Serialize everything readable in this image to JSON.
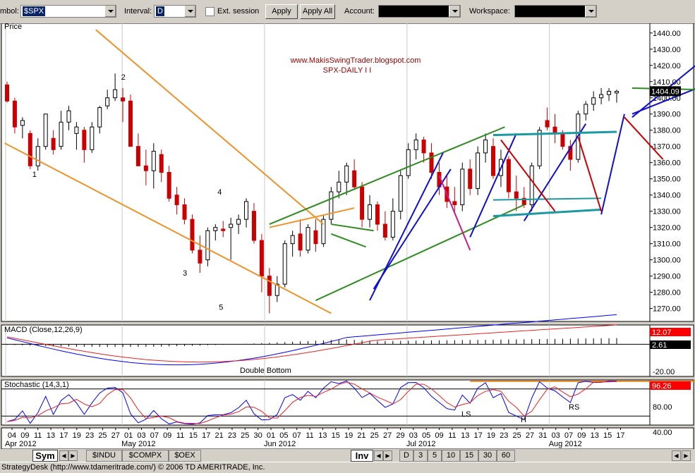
{
  "toolbar": {
    "symbol_label": "mbol:",
    "symbol_value": "$SPX",
    "interval_label": "Interval:",
    "interval_value": "D",
    "ext_session_label": "Ext. session",
    "apply_label": "Apply",
    "apply_all_label": "Apply All",
    "account_label": "Account:",
    "workspace_label": "Workspace:"
  },
  "price_panel": {
    "label": "Price",
    "watermark_url": "www.MakisSwingTrader.blogspot.com",
    "watermark_title": "SPX-DAILY I I",
    "last_price": "1404.09",
    "yticks": [
      "1440.00",
      "1430.00",
      "1420.00",
      "1410.00",
      "1400.00",
      "1390.00",
      "1380.00",
      "1370.00",
      "1360.00",
      "1350.00",
      "1340.00",
      "1330.00",
      "1320.00",
      "1310.00",
      "1300.00",
      "1290.00",
      "1280.00",
      "1270.00"
    ],
    "wave_labels": [
      "1",
      "2",
      "3",
      "4",
      "5"
    ],
    "ylim": [
      1262,
      1446
    ]
  },
  "macd_panel": {
    "label": "MACD (Close,12,26,9)",
    "value_top": "12.07",
    "value_mid": "2.61",
    "ytick": "-20.00",
    "annotation": "Double Bottom",
    "ylim": [
      -25,
      15
    ]
  },
  "stoch_panel": {
    "label": "Stochastic (14,3,1)",
    "value": "96.26",
    "ytick_80": "80.00",
    "ytick_40": "40.00",
    "labels": [
      "LS",
      "H",
      "RS"
    ],
    "ylim": [
      0,
      100
    ]
  },
  "x_axis": {
    "days": [
      "04",
      "09",
      "11",
      "13",
      "17",
      "19",
      "23",
      "25",
      "27",
      "01",
      "03",
      "07",
      "09",
      "11",
      "15",
      "17",
      "21",
      "23",
      "25",
      "30",
      "01",
      "05",
      "07",
      "11",
      "13",
      "15",
      "19",
      "21",
      "25",
      "27",
      "29",
      "03",
      "05",
      "09",
      "11",
      "13",
      "17",
      "19",
      "23",
      "25",
      "27",
      "31",
      "03",
      "07",
      "09",
      "13",
      "15",
      "17"
    ],
    "months": [
      {
        "label": "Apr 2012",
        "at": "04"
      },
      {
        "label": "May 2012",
        "at": "01"
      },
      {
        "label": "Jun 2012",
        "at": "01"
      },
      {
        "label": "Jul 2012",
        "at": "03"
      },
      {
        "label": "Aug 2012",
        "at": "03"
      }
    ]
  },
  "tabs": {
    "sym": "Sym",
    "sym_tabs": [
      "$INDU",
      "$COMPX",
      "$OEX"
    ],
    "inv": "Inv",
    "interval_tabs": [
      "D",
      "3",
      "5",
      "10",
      "15",
      "30",
      "60"
    ]
  },
  "status_bar": {
    "text": "StrategyDesk (http://www.tdameritrade.com/) © 2006 TD AMERITRADE, Inc."
  },
  "colors": {
    "up": "#000000",
    "down": "#cc0000",
    "orange": "#f0922a",
    "green": "#2e8b1e",
    "blue": "#1010cc",
    "teal": "#1a9aa0",
    "magenta": "#cc1a8a",
    "macd_line": "#0000ff",
    "macd_signal": "#ee2222",
    "stoch_k": "#0000ff",
    "stoch_d": "#ee2222"
  },
  "chart_data": {
    "type": "candlestick",
    "title": "SPX-DAILY I I",
    "series": [
      {
        "name": "$SPX",
        "candles": [
          [
            1408,
            1410,
            1397,
            1398
          ],
          [
            1398,
            1400,
            1378,
            1382
          ],
          [
            1383,
            1388,
            1375,
            1386
          ],
          [
            1378,
            1380,
            1356,
            1358
          ],
          [
            1358,
            1375,
            1355,
            1370
          ],
          [
            1370,
            1390,
            1368,
            1390
          ],
          [
            1375,
            1380,
            1365,
            1368
          ],
          [
            1370,
            1392,
            1368,
            1385
          ],
          [
            1385,
            1395,
            1380,
            1392
          ],
          [
            1378,
            1385,
            1368,
            1382
          ],
          [
            1380,
            1382,
            1360,
            1368
          ],
          [
            1368,
            1385,
            1366,
            1382
          ],
          [
            1382,
            1395,
            1378,
            1394
          ],
          [
            1395,
            1405,
            1393,
            1400
          ],
          [
            1400,
            1415,
            1398,
            1405
          ],
          [
            1400,
            1406,
            1385,
            1398
          ],
          [
            1398,
            1402,
            1370,
            1370
          ],
          [
            1370,
            1378,
            1358,
            1358
          ],
          [
            1358,
            1368,
            1346,
            1355
          ],
          [
            1355,
            1372,
            1344,
            1367
          ],
          [
            1365,
            1368,
            1348,
            1354
          ],
          [
            1354,
            1358,
            1336,
            1338
          ],
          [
            1340,
            1345,
            1328,
            1334
          ],
          [
            1334,
            1338,
            1322,
            1325
          ],
          [
            1325,
            1328,
            1304,
            1306
          ],
          [
            1306,
            1315,
            1292,
            1298
          ],
          [
            1300,
            1320,
            1296,
            1318
          ],
          [
            1318,
            1322,
            1312,
            1320
          ],
          [
            1319,
            1324,
            1314,
            1318
          ],
          [
            1320,
            1326,
            1300,
            1322
          ],
          [
            1322,
            1328,
            1316,
            1325
          ],
          [
            1325,
            1338,
            1320,
            1336
          ],
          [
            1330,
            1335,
            1310,
            1312
          ],
          [
            1312,
            1316,
            1280,
            1290
          ],
          [
            1290,
            1295,
            1267,
            1278
          ],
          [
            1278,
            1290,
            1274,
            1285
          ],
          [
            1285,
            1312,
            1283,
            1310
          ],
          [
            1310,
            1318,
            1302,
            1315
          ],
          [
            1316,
            1325,
            1302,
            1306
          ],
          [
            1306,
            1322,
            1304,
            1320
          ],
          [
            1318,
            1325,
            1305,
            1310
          ],
          [
            1310,
            1328,
            1308,
            1325
          ],
          [
            1325,
            1345,
            1322,
            1342
          ],
          [
            1342,
            1355,
            1338,
            1348
          ],
          [
            1348,
            1360,
            1340,
            1358
          ],
          [
            1355,
            1362,
            1344,
            1345
          ],
          [
            1345,
            1348,
            1320,
            1325
          ],
          [
            1325,
            1340,
            1320,
            1334
          ],
          [
            1334,
            1336,
            1318,
            1322
          ],
          [
            1322,
            1330,
            1312,
            1314
          ],
          [
            1314,
            1338,
            1312,
            1330
          ],
          [
            1330,
            1355,
            1325,
            1352
          ],
          [
            1352,
            1372,
            1350,
            1368
          ],
          [
            1368,
            1378,
            1362,
            1374
          ],
          [
            1374,
            1376,
            1360,
            1366
          ],
          [
            1366,
            1372,
            1350,
            1354
          ],
          [
            1354,
            1360,
            1340,
            1345
          ],
          [
            1345,
            1352,
            1332,
            1336
          ],
          [
            1336,
            1345,
            1328,
            1334
          ],
          [
            1334,
            1360,
            1330,
            1356
          ],
          [
            1356,
            1362,
            1340,
            1344
          ],
          [
            1344,
            1370,
            1340,
            1366
          ],
          [
            1366,
            1378,
            1360,
            1374
          ],
          [
            1370,
            1375,
            1350,
            1352
          ],
          [
            1352,
            1368,
            1345,
            1362
          ],
          [
            1362,
            1364,
            1338,
            1342
          ],
          [
            1342,
            1352,
            1330,
            1338
          ],
          [
            1338,
            1345,
            1332,
            1334
          ],
          [
            1334,
            1360,
            1330,
            1358
          ],
          [
            1358,
            1382,
            1356,
            1380
          ],
          [
            1386,
            1394,
            1380,
            1382
          ],
          [
            1382,
            1390,
            1372,
            1378
          ],
          [
            1378,
            1380,
            1368,
            1370
          ],
          [
            1370,
            1374,
            1355,
            1362
          ],
          [
            1362,
            1392,
            1360,
            1390
          ],
          [
            1390,
            1398,
            1386,
            1396
          ],
          [
            1396,
            1404,
            1392,
            1400
          ],
          [
            1400,
            1406,
            1396,
            1402
          ],
          [
            1402,
            1406,
            1398,
            1404
          ],
          [
            1403,
            1405,
            1397,
            1404
          ]
        ]
      },
      {
        "name": "MACD (Close,12,26,9)",
        "macd_last": 12.07,
        "signal_last": 2.61
      },
      {
        "name": "Stochastic (14,3,1)",
        "last": 96.26
      }
    ],
    "ylim": [
      1262,
      1446
    ]
  }
}
